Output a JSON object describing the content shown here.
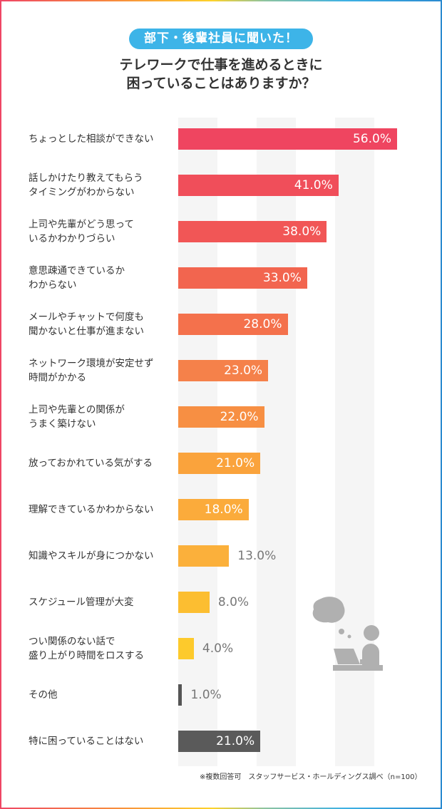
{
  "header": {
    "badge": "部下・後輩社員に聞いた！",
    "title_line1": "テレワークで仕事を進めるときに",
    "title_line2": "困っていることはありますか？"
  },
  "footnote": "※複数回答可　スタッフサービス・ホールディングス調べ（n=100）",
  "chart_data": {
    "type": "bar",
    "orientation": "horizontal",
    "title": "テレワークで仕事を進めるときに困っていることはありますか？",
    "xlim": [
      0,
      56
    ],
    "unit": "%",
    "categories": [
      "ちょっとした相談ができない",
      "話しかけたり教えてもらう\nタイミングがわからない",
      "上司や先輩がどう思って\nいるかわかりづらい",
      "意思疎通できているか\nわからない",
      "メールやチャットで何度も\n聞かないと仕事が進まない",
      "ネットワーク環境が安定せず\n時間がかかる",
      "上司や先輩との関係が\nうまく築けない",
      "放っておかれている気がする",
      "理解できているかわからない",
      "知識やスキルが身につかない",
      "スケジュール管理が大変",
      "つい関係のない話で\n盛り上がり時間をロスする",
      "その他",
      "特に困っていることはない"
    ],
    "values": [
      56.0,
      41.0,
      38.0,
      33.0,
      28.0,
      23.0,
      22.0,
      21.0,
      18.0,
      13.0,
      8.0,
      4.0,
      1.0,
      21.0
    ],
    "value_labels": [
      "56.0%",
      "41.0%",
      "38.0%",
      "33.0%",
      "28.0%",
      "23.0%",
      "22.0%",
      "21.0%",
      "18.0%",
      "13.0%",
      "8.0%",
      "4.0%",
      "1.0%",
      "21.0%"
    ],
    "colors": [
      "#ef4560",
      "#f04e5a",
      "#f15656",
      "#f2654f",
      "#f4714c",
      "#f5814a",
      "#f78f43",
      "#faa33c",
      "#fbab3b",
      "#fbb03b",
      "#fcbe31",
      "#fdca2c",
      "#555555",
      "#5a5a5a"
    ]
  }
}
